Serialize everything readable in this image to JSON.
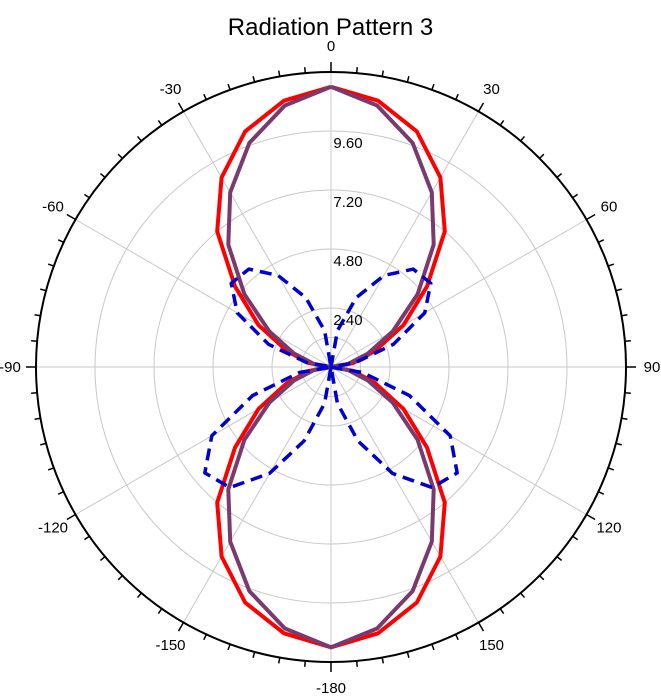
{
  "chart_data": {
    "type": "polar-line",
    "title": "Radiation Pattern 3",
    "angle_unit": "degrees",
    "angle_ticks": [
      0,
      30,
      60,
      90,
      120,
      150,
      -180,
      -150,
      -120,
      -90,
      -60,
      -30
    ],
    "angle_tick_labels": [
      "0",
      "30",
      "60",
      "90",
      "120",
      "150",
      "-180",
      "-150",
      "-120",
      "-90",
      "-60",
      "-30"
    ],
    "radial_ticks": [
      2.4,
      4.8,
      7.2,
      9.6
    ],
    "radial_tick_labels": [
      "2.40",
      "4.80",
      "7.20",
      "9.60"
    ],
    "rlim": [
      0,
      12
    ],
    "grid": true,
    "series": [
      {
        "color": "#ff0000",
        "style": "solid",
        "angles": [
          0,
          10,
          20,
          30,
          40,
          50,
          60,
          70,
          80,
          90,
          100,
          110,
          120,
          130,
          140,
          150,
          160,
          170,
          180,
          190,
          200,
          210,
          220,
          230,
          240,
          250,
          260,
          270,
          280,
          290,
          300,
          310,
          320,
          330,
          340,
          350
        ],
        "values": [
          11.4,
          11.0,
          10.2,
          8.9,
          7.2,
          5.1,
          3.4,
          1.9,
          0.9,
          0.0,
          0.9,
          1.9,
          3.4,
          5.1,
          7.2,
          8.9,
          10.2,
          11.0,
          11.4,
          11.0,
          10.2,
          8.9,
          7.2,
          5.1,
          3.4,
          1.9,
          0.9,
          0.0,
          0.9,
          1.9,
          3.4,
          5.1,
          7.2,
          8.9,
          10.2,
          11.0
        ]
      },
      {
        "color": "#7b3a6e",
        "style": "solid",
        "angles": [
          0,
          10,
          20,
          30,
          40,
          50,
          60,
          70,
          80,
          90,
          100,
          110,
          120,
          130,
          140,
          150,
          160,
          170,
          180,
          190,
          200,
          210,
          220,
          230,
          240,
          250,
          260,
          270,
          280,
          290,
          300,
          310,
          320,
          330,
          340,
          350
        ],
        "values": [
          11.4,
          10.8,
          9.7,
          8.2,
          6.5,
          4.6,
          2.9,
          1.6,
          0.7,
          0.0,
          0.7,
          1.6,
          2.9,
          4.6,
          6.5,
          8.2,
          9.7,
          10.8,
          11.4,
          10.8,
          9.7,
          8.2,
          6.5,
          4.6,
          2.9,
          1.6,
          0.7,
          0.0,
          0.7,
          1.6,
          2.9,
          4.6,
          6.5,
          8.2,
          9.7,
          10.8
        ]
      },
      {
        "color": "#0000cc",
        "style": "dashed",
        "angles": [
          0,
          10,
          20,
          30,
          40,
          50,
          60,
          70,
          80,
          90,
          100,
          110,
          120,
          130,
          140,
          150,
          160,
          170,
          180,
          190,
          200,
          210,
          220,
          230,
          240,
          250,
          260,
          270,
          280,
          290,
          300,
          310,
          320,
          330,
          340,
          350
        ],
        "values": [
          0.0,
          1.5,
          3.0,
          4.3,
          5.2,
          5.3,
          4.4,
          2.7,
          1.0,
          0.0,
          1.3,
          3.4,
          5.6,
          6.7,
          6.4,
          5.0,
          3.2,
          1.5,
          0.0,
          1.5,
          3.2,
          5.0,
          6.4,
          6.7,
          5.6,
          3.4,
          1.3,
          0.0,
          1.0,
          2.7,
          4.4,
          5.3,
          5.2,
          4.3,
          3.0,
          1.5
        ]
      }
    ]
  }
}
